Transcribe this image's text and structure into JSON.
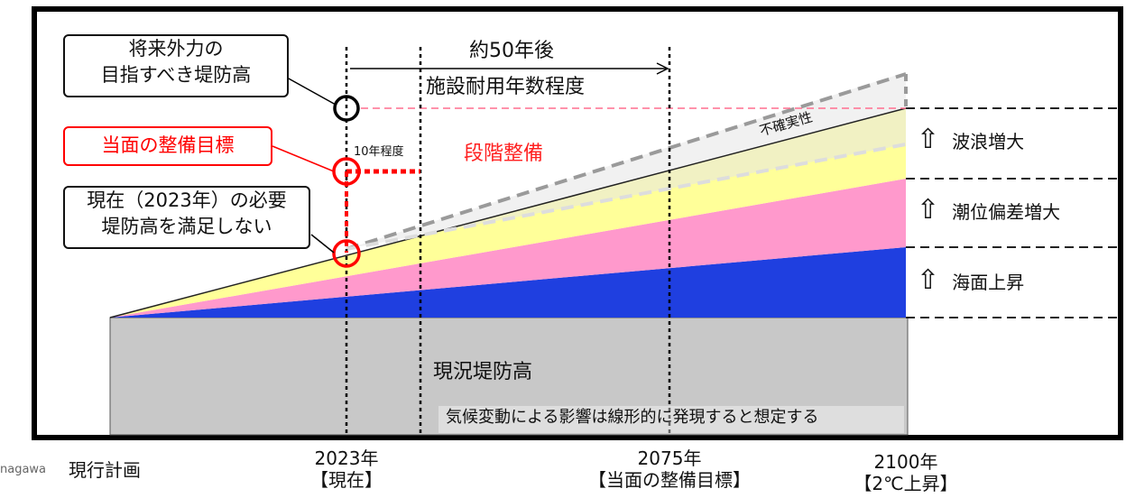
{
  "callouts": {
    "future_target": [
      "将来外力の",
      "目指すべき堤防高"
    ],
    "interim_target": "当面の整備目標",
    "current_insufficient": [
      "現在（2023年）の必要",
      "堤防高を満足しない"
    ]
  },
  "labels": {
    "approx_50_years": "約50年後",
    "service_life": "施設耐用年数程度",
    "ten_years": "10年程度",
    "staged_improvement": "段階整備",
    "uncertainty": "不確実性",
    "current_levee": "現況堤防高",
    "assumption_note": "気候変動による影響は線形的に発現すると想定する",
    "cropped_left": "nagawa",
    "current_plan": "現行計画"
  },
  "legend": [
    {
      "arrow": "⇧",
      "label": "波浪増大",
      "color": "#ffff99"
    },
    {
      "arrow": "⇧",
      "label": "潮位偏差増大",
      "color": "#ff99cc"
    },
    {
      "arrow": "⇧",
      "label": "海面上昇",
      "color": "#1f3fe0"
    }
  ],
  "axis_years": [
    {
      "year": "2023年",
      "note": "【現在】"
    },
    {
      "year": "2075年",
      "note": "【当面の整備目標】"
    },
    {
      "year": "2100年",
      "note": "【2℃上昇】"
    }
  ],
  "colors": {
    "levee": "#c8c8c8",
    "sea_level": "#1f3fe0",
    "tide_deviation": "#ff99cc",
    "waves": "#ffff99",
    "uncertainty_band": "#dcdcdc",
    "highlight_red": "#ff0000"
  }
}
